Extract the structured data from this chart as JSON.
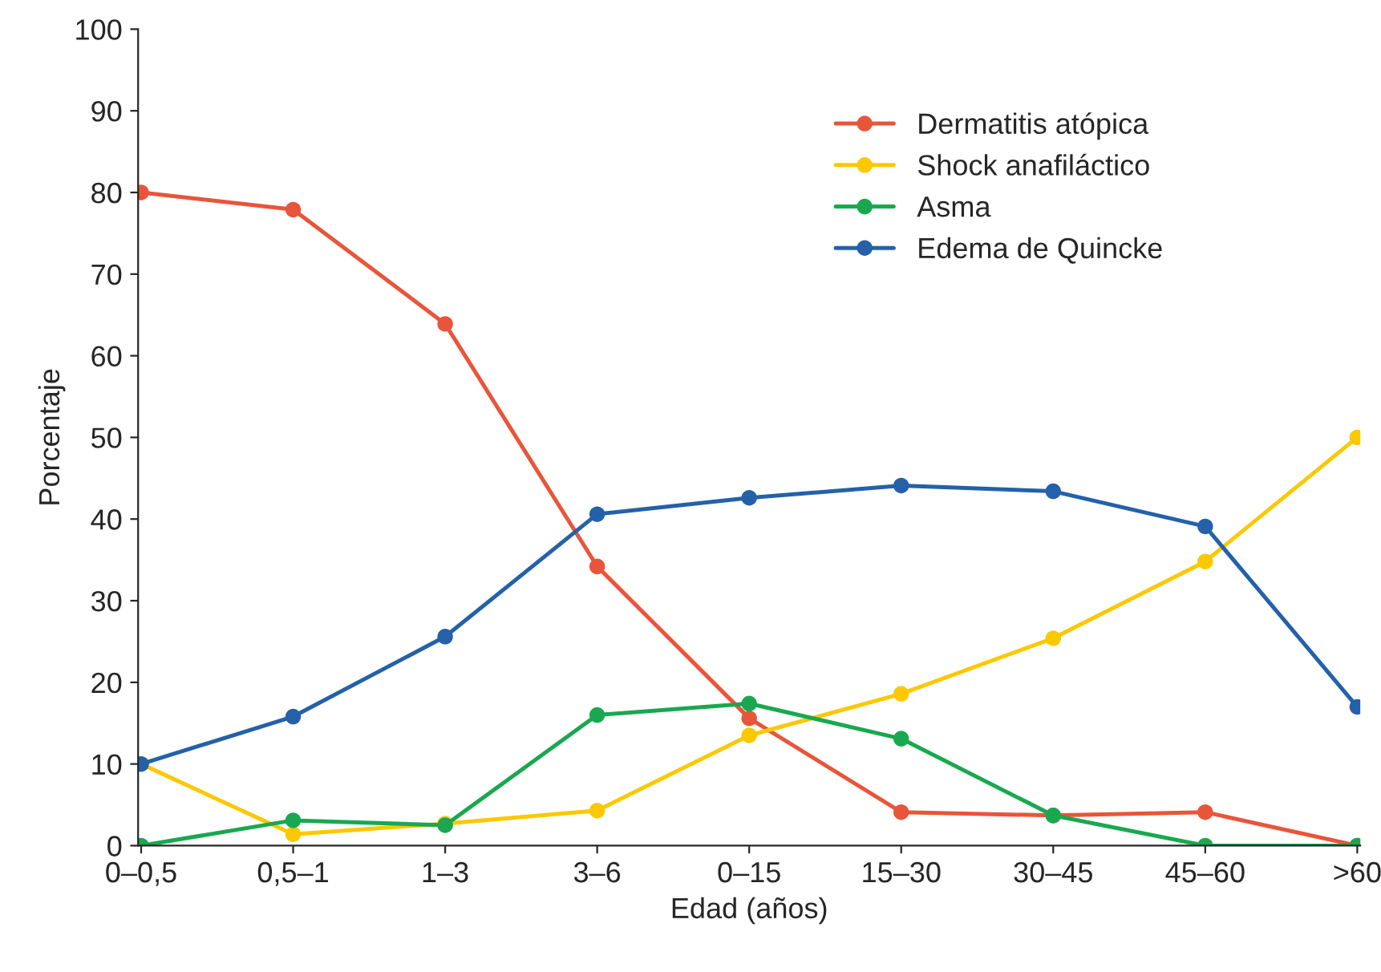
{
  "chart_data": {
    "type": "line",
    "xlabel": "Edad (años)",
    "ylabel": "Porcentaje",
    "categories": [
      "0–0,5",
      "0,5–1",
      "1–3",
      "3–6",
      "0–15",
      "15–30",
      "30–45",
      "45–60",
      ">60"
    ],
    "series": [
      {
        "name": "Dermatitis atópica",
        "color": "#e8553a",
        "values": [
          80,
          77.9,
          63.9,
          34.2,
          15.6,
          4.1,
          3.7,
          4.1,
          0
        ]
      },
      {
        "name": "Shock anafiláctico",
        "color": "#fcc800",
        "values": [
          10,
          1.4,
          2.7,
          4.3,
          13.5,
          18.6,
          25.4,
          34.8,
          50
        ]
      },
      {
        "name": "Asma",
        "color": "#19a84f",
        "values": [
          0,
          3.1,
          2.5,
          16.0,
          17.4,
          13.1,
          3.7,
          0,
          0
        ]
      },
      {
        "name": "Edema de Quincke",
        "color": "#2461a8",
        "values": [
          10,
          15.8,
          25.6,
          40.6,
          42.6,
          44.1,
          43.4,
          39.1,
          17.0
        ]
      }
    ],
    "ylim": [
      0,
      100
    ],
    "yticks": [
      0,
      10,
      20,
      30,
      40,
      50,
      60,
      70,
      80,
      90,
      100
    ],
    "grid": false,
    "legend": "top right",
    "marker": "circle",
    "line_style": "solid"
  }
}
